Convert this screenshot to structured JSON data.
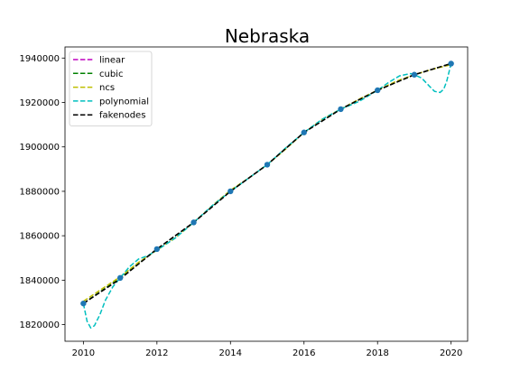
{
  "chart_data": {
    "type": "line",
    "title": "Nebraska",
    "xlabel": "",
    "ylabel": "",
    "xlim": [
      2009.5,
      2020.45
    ],
    "ylim": [
      1812500,
      1945000
    ],
    "x_ticks": [
      2010,
      2012,
      2014,
      2016,
      2018,
      2020
    ],
    "y_ticks": [
      1820000,
      1840000,
      1860000,
      1880000,
      1900000,
      1920000,
      1940000
    ],
    "grid": false,
    "legend_position": "top-left",
    "data_points": {
      "name": "",
      "color": "#1f77b4",
      "x": [
        2010,
        2011,
        2012,
        2013,
        2014,
        2015,
        2016,
        2017,
        2018,
        2019,
        2020
      ],
      "y": [
        1829500,
        1841000,
        1854000,
        1866000,
        1880000,
        1892000,
        1906500,
        1917000,
        1925500,
        1932500,
        1937500
      ]
    },
    "series": [
      {
        "name": "linear",
        "color": "#bf00bf",
        "style": "dashed",
        "x": [
          2010,
          2011,
          2012,
          2013,
          2014,
          2015,
          2016,
          2017,
          2018,
          2019,
          2020
        ],
        "y": [
          1829500,
          1841000,
          1854000,
          1866000,
          1880000,
          1892000,
          1906500,
          1917000,
          1925500,
          1932500,
          1937500
        ]
      },
      {
        "name": "cubic",
        "color": "#008000",
        "style": "dashed",
        "x": [
          2010,
          2011,
          2012,
          2013,
          2014,
          2015,
          2016,
          2017,
          2018,
          2019,
          2020
        ],
        "y": [
          1829500,
          1841000,
          1854000,
          1866000,
          1880000,
          1892000,
          1906500,
          1917000,
          1925500,
          1932500,
          1937500
        ]
      },
      {
        "name": "ncs",
        "color": "#bfbf00",
        "style": "dashed",
        "x": [
          2010,
          2010.5,
          2011,
          2011.5,
          2012,
          2012.5,
          2013,
          2013.5,
          2014,
          2014.5,
          2015,
          2015.5,
          2016,
          2016.5,
          2017,
          2017.5,
          2018,
          2018.5,
          2019,
          2019.5,
          2020
        ],
        "y": [
          1830500,
          1836000,
          1841500,
          1848000,
          1853500,
          1859000,
          1866000,
          1873500,
          1880500,
          1886000,
          1892000,
          1899000,
          1906500,
          1912500,
          1917000,
          1921500,
          1925500,
          1929500,
          1932500,
          1935000,
          1937000
        ]
      },
      {
        "name": "polynomial",
        "color": "#00bfbf",
        "style": "dashed",
        "x": [
          2010,
          2010.1,
          2010.2,
          2010.3,
          2010.45,
          2010.6,
          2010.8,
          2011,
          2011.25,
          2011.5,
          2011.75,
          2012,
          2012.5,
          2013,
          2013.5,
          2014,
          2014.5,
          2015,
          2015.5,
          2016,
          2016.5,
          2017,
          2017.5,
          2018,
          2018.3,
          2018.6,
          2018.9,
          2019,
          2019.2,
          2019.4,
          2019.55,
          2019.7,
          2019.8,
          2019.88,
          2019.94,
          2020
        ],
        "y": [
          1829500,
          1821500,
          1818500,
          1819500,
          1824500,
          1831000,
          1837000,
          1841000,
          1846000,
          1849500,
          1851000,
          1853500,
          1859000,
          1866000,
          1873500,
          1880000,
          1886000,
          1892000,
          1899500,
          1906500,
          1912500,
          1917000,
          1920500,
          1925500,
          1929000,
          1932000,
          1933000,
          1932500,
          1931000,
          1927500,
          1925000,
          1924500,
          1926000,
          1929500,
          1933500,
          1937500
        ]
      },
      {
        "name": "fakenodes",
        "color": "#000000",
        "style": "dashed",
        "x": [
          2010,
          2011,
          2012,
          2013,
          2014,
          2015,
          2016,
          2017,
          2018,
          2019,
          2020
        ],
        "y": [
          1829500,
          1840500,
          1854000,
          1866000,
          1880000,
          1892000,
          1906500,
          1917000,
          1925500,
          1932500,
          1937500
        ]
      }
    ]
  }
}
